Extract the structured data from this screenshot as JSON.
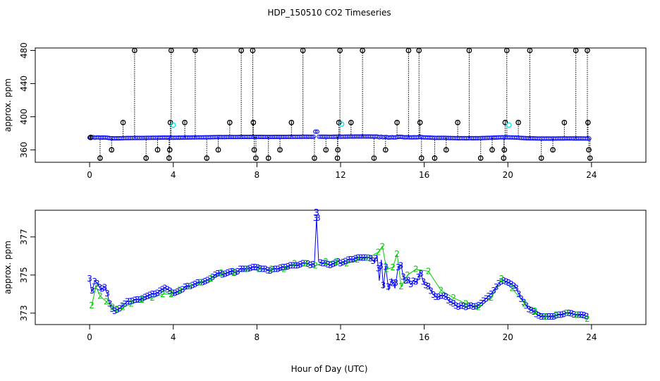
{
  "chart_data": [
    {
      "type": "scatter",
      "title": "HDP_150510  CO2 Timeseries",
      "xlabel": "",
      "ylabel": "approx. ppm",
      "xlim": [
        -2.6,
        26.6
      ],
      "ylim": [
        345,
        483
      ],
      "xticks": [
        0,
        4,
        8,
        12,
        16,
        20,
        24
      ],
      "yticks": [
        360,
        400,
        440,
        480
      ],
      "grid": false,
      "colors": {
        "main": "#0000ff",
        "flag": "#00e5ee",
        "outlier": "#000000"
      },
      "outlier_points": [
        {
          "x": 0.05,
          "y": 375
        },
        {
          "x": 0.5,
          "y": 350
        },
        {
          "x": 1.05,
          "y": 360
        },
        {
          "x": 1.6,
          "y": 393
        },
        {
          "x": 2.15,
          "y": 480
        },
        {
          "x": 2.7,
          "y": 350
        },
        {
          "x": 3.25,
          "y": 360
        },
        {
          "x": 3.8,
          "y": 350
        },
        {
          "x": 3.83,
          "y": 360
        },
        {
          "x": 3.86,
          "y": 393
        },
        {
          "x": 3.9,
          "y": 480
        },
        {
          "x": 4.55,
          "y": 393
        },
        {
          "x": 5.05,
          "y": 480
        },
        {
          "x": 5.6,
          "y": 350
        },
        {
          "x": 6.15,
          "y": 360
        },
        {
          "x": 6.7,
          "y": 393
        },
        {
          "x": 7.25,
          "y": 480
        },
        {
          "x": 7.8,
          "y": 480
        },
        {
          "x": 7.83,
          "y": 393
        },
        {
          "x": 7.87,
          "y": 360
        },
        {
          "x": 7.95,
          "y": 350
        },
        {
          "x": 8.55,
          "y": 350
        },
        {
          "x": 9.1,
          "y": 360
        },
        {
          "x": 9.65,
          "y": 393
        },
        {
          "x": 10.2,
          "y": 480
        },
        {
          "x": 10.75,
          "y": 350
        },
        {
          "x": 11.3,
          "y": 360
        },
        {
          "x": 11.85,
          "y": 350
        },
        {
          "x": 11.87,
          "y": 360
        },
        {
          "x": 11.92,
          "y": 393
        },
        {
          "x": 11.97,
          "y": 480
        },
        {
          "x": 12.5,
          "y": 393
        },
        {
          "x": 13.05,
          "y": 480
        },
        {
          "x": 13.6,
          "y": 350
        },
        {
          "x": 14.15,
          "y": 360
        },
        {
          "x": 14.7,
          "y": 393
        },
        {
          "x": 15.25,
          "y": 480
        },
        {
          "x": 15.75,
          "y": 480
        },
        {
          "x": 15.8,
          "y": 393
        },
        {
          "x": 15.87,
          "y": 350
        },
        {
          "x": 16.5,
          "y": 350
        },
        {
          "x": 17.05,
          "y": 360
        },
        {
          "x": 17.6,
          "y": 393
        },
        {
          "x": 18.15,
          "y": 480
        },
        {
          "x": 18.7,
          "y": 350
        },
        {
          "x": 19.25,
          "y": 360
        },
        {
          "x": 19.8,
          "y": 350
        },
        {
          "x": 19.83,
          "y": 360
        },
        {
          "x": 19.87,
          "y": 393
        },
        {
          "x": 19.95,
          "y": 480
        },
        {
          "x": 20.5,
          "y": 393
        },
        {
          "x": 21.05,
          "y": 480
        },
        {
          "x": 21.6,
          "y": 350
        },
        {
          "x": 22.15,
          "y": 360
        },
        {
          "x": 22.7,
          "y": 393
        },
        {
          "x": 23.25,
          "y": 480
        },
        {
          "x": 23.8,
          "y": 480
        },
        {
          "x": 23.83,
          "y": 393
        },
        {
          "x": 23.87,
          "y": 360
        },
        {
          "x": 23.93,
          "y": 350
        }
      ],
      "flag_points": [
        {
          "x": 4.0,
          "y": 390
        },
        {
          "x": 12.05,
          "y": 391
        },
        {
          "x": 20.05,
          "y": 390
        }
      ]
    },
    {
      "type": "line",
      "title": "",
      "xlabel": "Hour of Day (UTC)",
      "ylabel": "approx. ppm",
      "xlim": [
        -2.6,
        26.6
      ],
      "ylim": [
        372.4,
        378.4
      ],
      "xticks": [
        0,
        4,
        8,
        12,
        16,
        20,
        24
      ],
      "yticks": [
        373,
        375,
        377
      ],
      "grid": false,
      "colors": {
        "series3": "#0000ff",
        "series2": "#00cc00"
      },
      "series": [
        {
          "marker": "3",
          "x": [
            0.0,
            0.1,
            0.25,
            0.4,
            0.55,
            0.7,
            0.85,
            1.0,
            1.2,
            1.4,
            1.6,
            1.8,
            2.0,
            2.2,
            2.4,
            2.6,
            2.8,
            3.0,
            3.2,
            3.4,
            3.6,
            3.8,
            4.0,
            4.2,
            4.4,
            4.6,
            4.8,
            5.0,
            5.2,
            5.4,
            5.6,
            5.8,
            6.0,
            6.2,
            6.4,
            6.6,
            6.8,
            7.0,
            7.2,
            7.4,
            7.6,
            7.8,
            8.0,
            8.2,
            8.4,
            8.6,
            8.8,
            9.0,
            9.2,
            9.4,
            9.6,
            9.8,
            10.0,
            10.2,
            10.4,
            10.6,
            10.75,
            10.85,
            10.95,
            11.1,
            11.3,
            11.5,
            11.7,
            11.9,
            12.0,
            12.2,
            12.4,
            12.6,
            12.8,
            13.0,
            13.2,
            13.4,
            13.6,
            13.75,
            13.85,
            13.95,
            14.05,
            14.15,
            14.3,
            14.45,
            14.6,
            14.75,
            14.9,
            15.05,
            15.2,
            15.35,
            15.5,
            15.65,
            15.8,
            16.0,
            16.2,
            16.4,
            16.6,
            16.8,
            17.0,
            17.2,
            17.4,
            17.6,
            17.8,
            18.0,
            18.2,
            18.4,
            18.6,
            18.8,
            19.0,
            19.2,
            19.4,
            19.6,
            19.8,
            20.0,
            20.2,
            20.4,
            20.6,
            20.8,
            21.0,
            21.2,
            21.4,
            21.6,
            21.8,
            22.0,
            22.2,
            22.4,
            22.6,
            22.8,
            23.0,
            23.2,
            23.4,
            23.6,
            23.8
          ],
          "y": [
            374.8,
            374.1,
            374.7,
            374.5,
            374.2,
            374.4,
            374.0,
            373.3,
            373.1,
            373.2,
            373.4,
            373.6,
            373.6,
            373.7,
            373.7,
            373.8,
            373.9,
            374.0,
            374.0,
            374.2,
            374.3,
            374.2,
            374.0,
            374.1,
            374.2,
            374.4,
            374.4,
            374.5,
            374.6,
            374.6,
            374.7,
            374.8,
            375.0,
            375.1,
            375.0,
            375.1,
            375.2,
            375.1,
            375.3,
            375.3,
            375.3,
            375.4,
            375.4,
            375.3,
            375.3,
            375.2,
            375.3,
            375.3,
            375.4,
            375.4,
            375.5,
            375.5,
            375.5,
            375.6,
            375.6,
            375.5,
            375.6,
            378.0,
            375.7,
            375.6,
            375.6,
            375.5,
            375.6,
            375.7,
            375.6,
            375.7,
            375.8,
            375.8,
            375.9,
            375.9,
            375.9,
            375.9,
            375.7,
            376.0,
            374.7,
            375.8,
            374.3,
            375.5,
            374.2,
            374.8,
            374.3,
            375.4,
            375.5,
            374.6,
            374.8,
            374.5,
            374.7,
            374.6,
            375.2,
            374.5,
            374.4,
            374.0,
            373.8,
            373.9,
            373.9,
            373.6,
            373.5,
            373.3,
            373.4,
            373.3,
            373.4,
            373.3,
            373.4,
            373.6,
            373.8,
            374.0,
            374.3,
            374.6,
            374.7,
            374.6,
            374.5,
            374.3,
            373.8,
            373.5,
            373.2,
            373.1,
            372.9,
            372.8,
            372.8,
            372.8,
            372.8,
            372.9,
            372.9,
            373.0,
            373.0,
            372.9,
            372.9,
            372.9,
            372.8
          ]
        },
        {
          "marker": "2",
          "x": [
            0.1,
            0.3,
            0.5,
            0.8,
            1.1,
            1.3,
            1.6,
            2.0,
            2.5,
            3.0,
            3.5,
            3.9,
            4.3,
            4.8,
            5.3,
            5.8,
            6.3,
            6.9,
            7.5,
            8.1,
            8.7,
            9.3,
            9.8,
            10.3,
            10.8,
            11.3,
            11.8,
            12.3,
            12.8,
            13.3,
            13.8,
            14.0,
            14.2,
            14.5,
            14.7,
            14.9,
            15.2,
            15.6,
            16.2,
            16.8,
            17.4,
            18.0,
            18.6,
            19.2,
            19.7,
            20.2,
            20.8,
            21.3,
            21.8,
            22.3,
            22.8,
            23.3,
            23.8
          ],
          "y": [
            373.4,
            374.4,
            373.9,
            373.6,
            373.3,
            373.2,
            373.3,
            373.5,
            373.7,
            373.8,
            374.0,
            374.0,
            374.2,
            374.4,
            374.6,
            374.8,
            375.1,
            375.1,
            375.3,
            375.3,
            375.3,
            375.3,
            375.6,
            375.6,
            375.5,
            375.7,
            375.7,
            375.6,
            375.8,
            375.9,
            376.2,
            376.5,
            375.3,
            375.4,
            376.1,
            374.4,
            375.0,
            375.3,
            375.2,
            374.2,
            373.8,
            373.5,
            373.3,
            373.8,
            374.8,
            374.3,
            373.5,
            373.1,
            372.8,
            372.9,
            373.0,
            372.9,
            372.7
          ]
        }
      ]
    }
  ]
}
